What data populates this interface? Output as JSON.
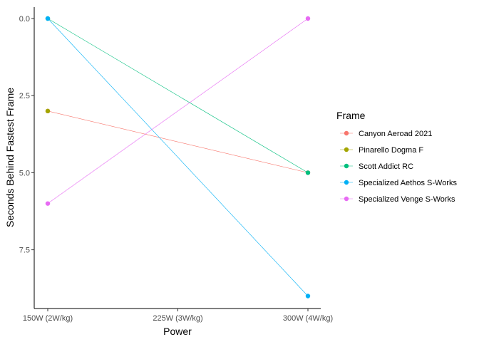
{
  "chart_data": {
    "type": "line",
    "xlabel": "Power",
    "ylabel": "Seconds Behind Fastest Frame",
    "categories": [
      "150W (2W/kg)",
      "225W (3W/kg)",
      "300W (4W/kg)"
    ],
    "yticks": [
      "0.0",
      "2.5",
      "5.0",
      "7.5"
    ],
    "ylim": [
      0,
      9.4
    ],
    "y_reversed": true,
    "grid": false,
    "legend": {
      "title": "Frame",
      "position": "right"
    },
    "series": [
      {
        "name": "Canyon Aeroad 2021",
        "color": "#F8766D",
        "points": [
          {
            "x": "150W (2W/kg)",
            "y": 3
          },
          {
            "x": "300W (4W/kg)",
            "y": 5
          }
        ]
      },
      {
        "name": "Pinarello Dogma F",
        "color": "#A3A500",
        "points": [
          {
            "x": "150W (2W/kg)",
            "y": 3
          }
        ]
      },
      {
        "name": "Scott Addict RC",
        "color": "#00BF7D",
        "points": [
          {
            "x": "150W (2W/kg)",
            "y": 0
          },
          {
            "x": "300W (4W/kg)",
            "y": 5
          }
        ]
      },
      {
        "name": "Specialized Aethos S-Works",
        "color": "#00B0F6",
        "points": [
          {
            "x": "150W (2W/kg)",
            "y": 0
          },
          {
            "x": "300W (4W/kg)",
            "y": 9
          }
        ]
      },
      {
        "name": "Specialized Venge S-Works",
        "color": "#E76BF3",
        "points": [
          {
            "x": "150W (2W/kg)",
            "y": 6
          },
          {
            "x": "300W (4W/kg)",
            "y": 0
          }
        ]
      }
    ]
  }
}
